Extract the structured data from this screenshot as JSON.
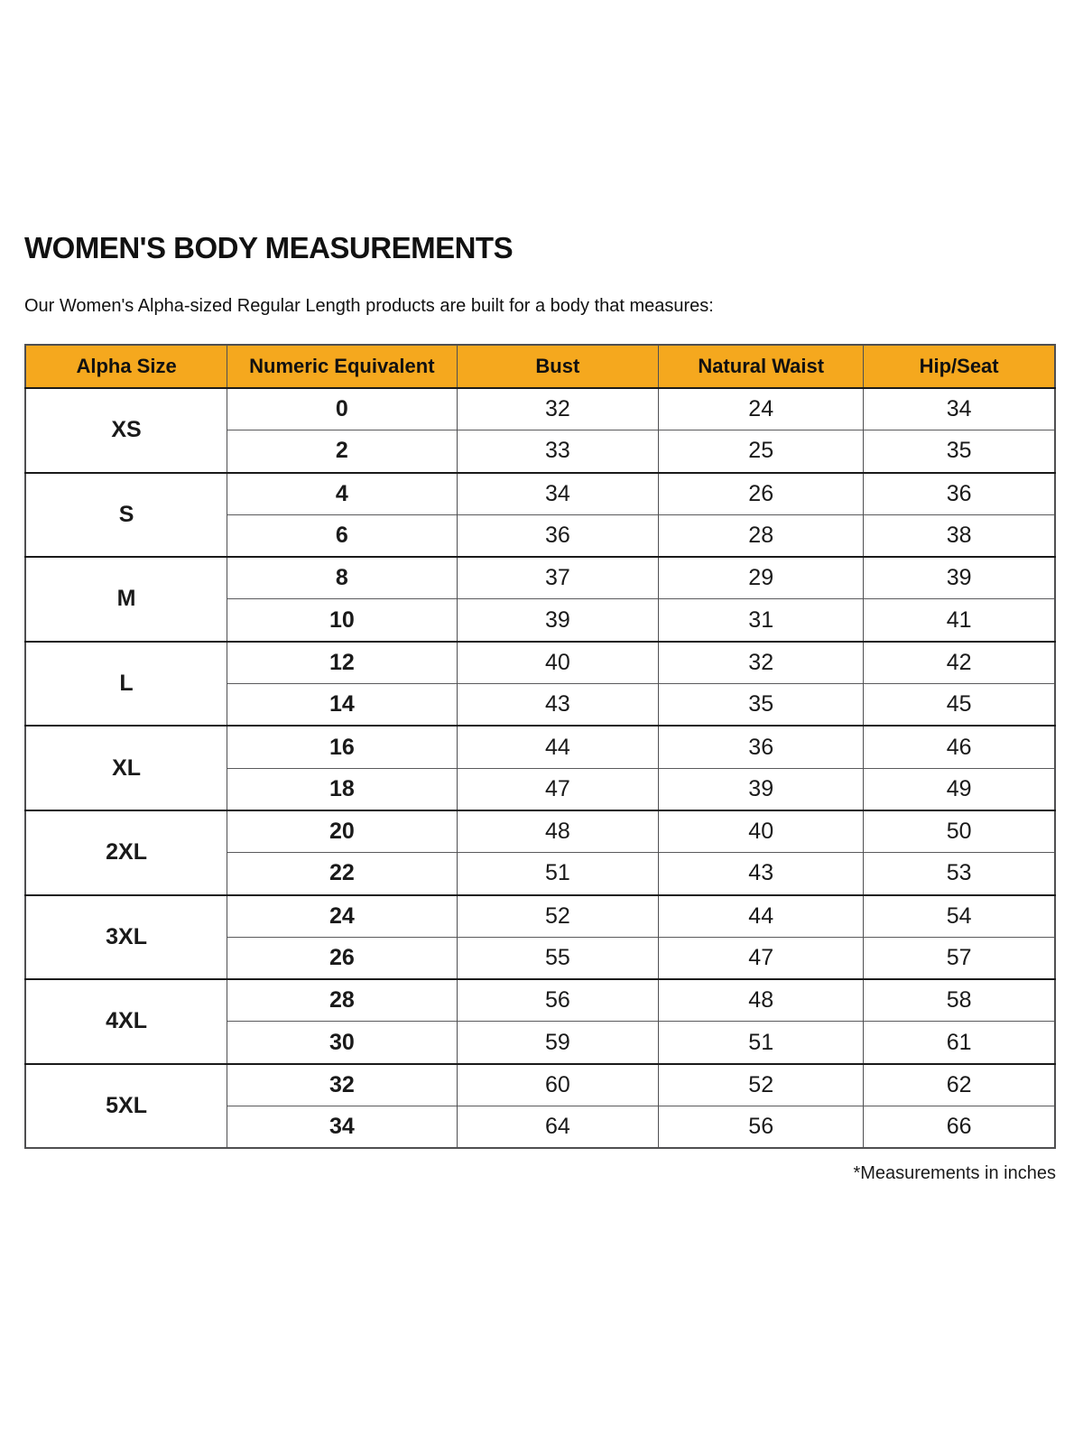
{
  "page": {
    "title": "WOMEN'S BODY MEASUREMENTS",
    "subtitle": "Our Women's Alpha-sized Regular Length products are built for a body that measures:",
    "footnote": "*Measurements in inches"
  },
  "colors": {
    "header_bg": "#F5A81E",
    "shaded_row_bg": "#F1F1F2",
    "group_border": "#1A1A1A",
    "grid_border": "#4F4F51",
    "text": "#111111"
  },
  "chart_data": {
    "type": "table",
    "title": "WOMEN'S BODY MEASUREMENTS",
    "columns": [
      "Alpha Size",
      "Numeric Equivalent",
      "Bust",
      "Natural Waist",
      "Hip/Seat"
    ],
    "units": "inches",
    "rows": [
      [
        "XS",
        "0",
        "32",
        "24",
        "34"
      ],
      [
        "XS",
        "2",
        "33",
        "25",
        "35"
      ],
      [
        "S",
        "4",
        "34",
        "26",
        "36"
      ],
      [
        "S",
        "6",
        "36",
        "28",
        "38"
      ],
      [
        "M",
        "8",
        "37",
        "29",
        "39"
      ],
      [
        "M",
        "10",
        "39",
        "31",
        "41"
      ],
      [
        "L",
        "12",
        "40",
        "32",
        "42"
      ],
      [
        "L",
        "14",
        "43",
        "35",
        "45"
      ],
      [
        "XL",
        "16",
        "44",
        "36",
        "46"
      ],
      [
        "XL",
        "18",
        "47",
        "39",
        "49"
      ],
      [
        "2XL",
        "20",
        "48",
        "40",
        "50"
      ],
      [
        "2XL",
        "22",
        "51",
        "43",
        "53"
      ],
      [
        "3XL",
        "24",
        "52",
        "44",
        "54"
      ],
      [
        "3XL",
        "26",
        "55",
        "47",
        "57"
      ],
      [
        "4XL",
        "28",
        "56",
        "48",
        "58"
      ],
      [
        "4XL",
        "30",
        "59",
        "51",
        "61"
      ],
      [
        "5XL",
        "32",
        "60",
        "52",
        "62"
      ],
      [
        "5XL",
        "34",
        "64",
        "56",
        "66"
      ]
    ]
  },
  "table": {
    "headers": [
      "Alpha Size",
      "Numeric Equivalent",
      "Bust",
      "Natural Waist",
      "Hip/Seat"
    ],
    "groups": [
      {
        "alpha": "XS",
        "shaded": false,
        "rows": [
          [
            "0",
            "32",
            "24",
            "34"
          ],
          [
            "2",
            "33",
            "25",
            "35"
          ]
        ]
      },
      {
        "alpha": "S",
        "shaded": true,
        "rows": [
          [
            "4",
            "34",
            "26",
            "36"
          ],
          [
            "6",
            "36",
            "28",
            "38"
          ]
        ]
      },
      {
        "alpha": "M",
        "shaded": false,
        "rows": [
          [
            "8",
            "37",
            "29",
            "39"
          ],
          [
            "10",
            "39",
            "31",
            "41"
          ]
        ]
      },
      {
        "alpha": "L",
        "shaded": true,
        "rows": [
          [
            "12",
            "40",
            "32",
            "42"
          ],
          [
            "14",
            "43",
            "35",
            "45"
          ]
        ]
      },
      {
        "alpha": "XL",
        "shaded": false,
        "rows": [
          [
            "16",
            "44",
            "36",
            "46"
          ],
          [
            "18",
            "47",
            "39",
            "49"
          ]
        ]
      },
      {
        "alpha": "2XL",
        "shaded": true,
        "rows": [
          [
            "20",
            "48",
            "40",
            "50"
          ],
          [
            "22",
            "51",
            "43",
            "53"
          ]
        ]
      },
      {
        "alpha": "3XL",
        "shaded": false,
        "rows": [
          [
            "24",
            "52",
            "44",
            "54"
          ],
          [
            "26",
            "55",
            "47",
            "57"
          ]
        ]
      },
      {
        "alpha": "4XL",
        "shaded": true,
        "rows": [
          [
            "28",
            "56",
            "48",
            "58"
          ],
          [
            "30",
            "59",
            "51",
            "61"
          ]
        ]
      },
      {
        "alpha": "5XL",
        "shaded": false,
        "rows": [
          [
            "32",
            "60",
            "52",
            "62"
          ],
          [
            "34",
            "64",
            "56",
            "66"
          ]
        ]
      }
    ]
  }
}
